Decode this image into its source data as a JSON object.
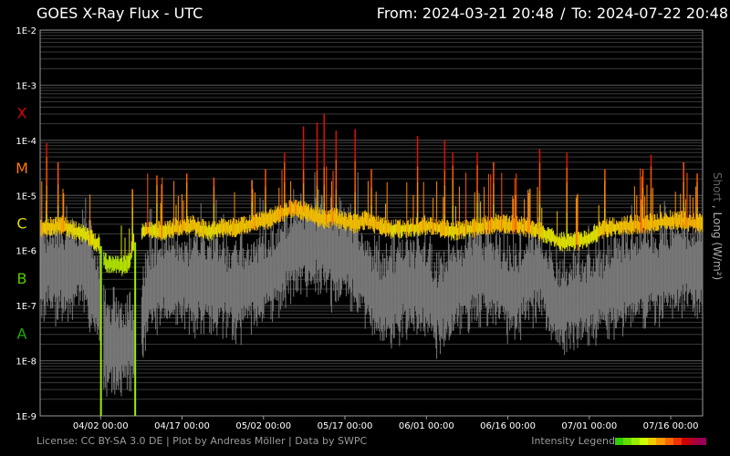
{
  "header": {
    "title": "GOES X-Ray Flux - UTC",
    "from_label": "From:",
    "from_value": "2024-03-21 20:48",
    "to_label": "To:",
    "to_value": "2024-07-22 20:48"
  },
  "footer": {
    "license": "License: CC BY-SA 3.0 DE | Plot by Andreas Möller | Data by SWPC",
    "legend_label": "Intensity Legend"
  },
  "legend_colors": [
    "#33cc00",
    "#66dd00",
    "#99ee00",
    "#ccff00",
    "#eecc00",
    "#ff9900",
    "#ff6600",
    "#ee3300",
    "#cc0000",
    "#aa0033",
    "#990055"
  ],
  "colors": {
    "background": "#000000",
    "grid": "#444444",
    "frame": "#9a9a9a",
    "long_channel": "yellow-to-red by class",
    "short_channel": "#777777",
    "class_X": "#dd0000",
    "class_M": "#ff7700",
    "class_C": "#dddd00",
    "class_B": "#55cc00",
    "class_A": "#22aa00"
  },
  "chart_data": {
    "type": "line",
    "title": "GOES X-Ray Flux - UTC",
    "ylabel_short": "Short",
    "ylabel_long": "Long (W/m²)",
    "yscale": "log",
    "ylim": [
      1e-09,
      0.01
    ],
    "y_ticks": [
      "1E-9",
      "1E-8",
      "1E-7",
      "1E-6",
      "1E-5",
      "1E-4",
      "1E-3",
      "1E-2"
    ],
    "y_tick_values": [
      1e-09,
      1e-08,
      1e-07,
      1e-06,
      1e-05,
      0.0001,
      0.001,
      0.01
    ],
    "class_labels": [
      "A",
      "B",
      "C",
      "M",
      "X"
    ],
    "class_label_centers": [
      3.16e-08,
      3.16e-07,
      3.16e-06,
      3.16e-05,
      0.000316
    ],
    "x_range": [
      "2024-03-21 20:48",
      "2024-07-22 20:48"
    ],
    "x_ticks": [
      "04/02 00:00",
      "04/17 00:00",
      "05/02 00:00",
      "05/17 00:00",
      "06/01 00:00",
      "06/16 00:00",
      "07/01 00:00",
      "07/16 00:00"
    ],
    "x_tick_days": [
      11.13,
      26.13,
      41.13,
      56.13,
      71.13,
      86.13,
      101.13,
      116.13
    ],
    "grid": true,
    "series": [
      {
        "name": "Long",
        "x_days": [
          0,
          4,
          8,
          11,
          12,
          15,
          16.5,
          17,
          18.5,
          20,
          22,
          25,
          28,
          31,
          34,
          36,
          38,
          40,
          42,
          44,
          46,
          48,
          50,
          52,
          54,
          56,
          58,
          60,
          64,
          68,
          72,
          76,
          80,
          84,
          88,
          92,
          96,
          100,
          104,
          108,
          112,
          116,
          119,
          121.5,
          122
        ],
        "values": [
          2.5e-06,
          2.8e-06,
          2e-06,
          1.2e-06,
          6e-07,
          5e-07,
          6e-07,
          1.3e-06,
          2e-06,
          2.4e-06,
          2.2e-06,
          2.5e-06,
          2.8e-06,
          2.2e-06,
          2.6e-06,
          2.5e-06,
          2.8e-06,
          3.4e-06,
          3.5e-06,
          4.5e-06,
          5.5e-06,
          5.2e-06,
          4.5e-06,
          3.5e-06,
          4e-06,
          3.3e-06,
          3e-06,
          3.5e-06,
          2.4e-06,
          2.5e-06,
          2.8e-06,
          2.2e-06,
          2.5e-06,
          3e-06,
          2.8e-06,
          2.2e-06,
          1.4e-06,
          1.5e-06,
          2.5e-06,
          2.8e-06,
          3e-06,
          3.5e-06,
          3.3e-06,
          3e-06,
          2.8e-06
        ],
        "peaks": [
          [
            1.2,
            9e-05
          ],
          [
            3.3,
            4e-05
          ],
          [
            17,
            1.3e-05
          ],
          [
            21.5,
            2.3e-05
          ],
          [
            27,
            2.5e-05
          ],
          [
            32,
            2.1e-05
          ],
          [
            39,
            1.9e-05
          ],
          [
            41.5,
            3e-05
          ],
          [
            45,
            6e-05
          ],
          [
            48.5,
            0.00018
          ],
          [
            51,
            0.00021
          ],
          [
            52.3,
            0.0003
          ],
          [
            54.5,
            0.00015
          ],
          [
            58,
            0.00016
          ],
          [
            61,
            3e-05
          ],
          [
            69.5,
            0.00012
          ],
          [
            74.5,
            0.0001
          ],
          [
            76,
            6e-05
          ],
          [
            80.5,
            6e-05
          ],
          [
            83.5,
            4e-05
          ],
          [
            92,
            7e-05
          ],
          [
            97,
            6e-05
          ],
          [
            104,
            3e-05
          ],
          [
            111,
            3e-05
          ],
          [
            112.5,
            5.5e-05
          ],
          [
            118.5,
            4e-05
          ],
          [
            121,
            2.5e-05
          ]
        ]
      },
      {
        "name": "Short",
        "x_days": [
          0,
          4,
          8,
          11,
          11.5,
          14,
          17,
          19,
          20,
          22,
          26,
          29,
          32,
          36,
          40,
          43,
          46,
          48,
          50,
          52,
          54,
          56,
          58,
          60,
          63,
          66,
          70,
          73,
          76,
          80,
          84,
          87,
          90,
          92,
          95,
          98,
          102,
          106,
          110,
          114,
          118,
          121,
          122
        ],
        "values": [
          5e-07,
          4e-07,
          6e-07,
          1e-07,
          2e-08,
          1.8e-08,
          1.9e-08,
          7e-08,
          2e-07,
          3e-07,
          2.8e-07,
          2.5e-07,
          2.5e-07,
          2e-07,
          2.7e-07,
          4e-07,
          9e-07,
          1.2e-06,
          1.1e-06,
          1.4e-06,
          8e-07,
          1e-06,
          6e-07,
          3e-07,
          1.2e-07,
          2e-07,
          2.5e-07,
          1e-07,
          1.8e-07,
          4e-07,
          3e-07,
          1.5e-07,
          3.5e-07,
          4e-07,
          9e-08,
          1.2e-07,
          1.5e-07,
          2.2e-07,
          3e-07,
          3.5e-07,
          6e-07,
          4e-07,
          5e-07
        ],
        "peaks": [
          [
            41.5,
            4e-06
          ],
          [
            45,
            8e-06
          ],
          [
            48.5,
            2.5e-05
          ],
          [
            51,
            2e-05
          ],
          [
            52.3,
            3e-05
          ],
          [
            58,
            1.6e-05
          ],
          [
            69.5,
            1e-05
          ],
          [
            92,
            8e-06
          ],
          [
            112.5,
            8e-06
          ]
        ]
      }
    ],
    "data_gaps_days": [
      [
        11,
        11.6
      ],
      [
        17.3,
        18.6
      ]
    ]
  }
}
